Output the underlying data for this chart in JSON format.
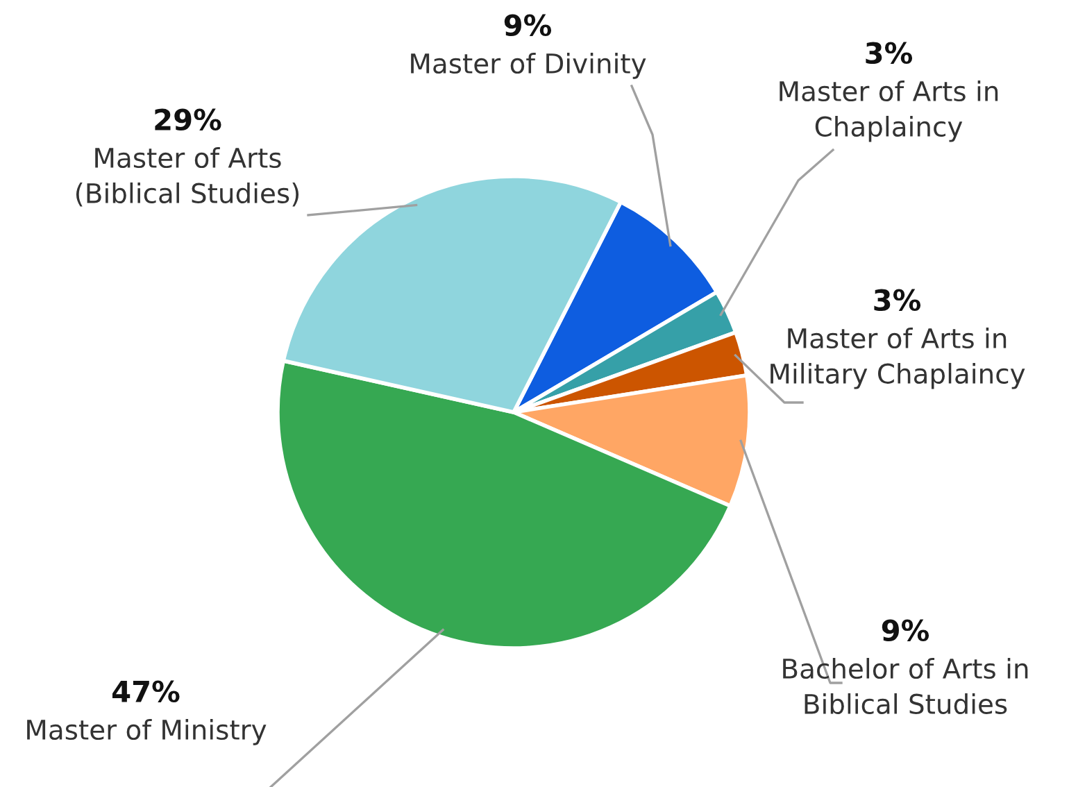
{
  "chart_data": {
    "type": "pie",
    "categories": [
      "Master of Divinity",
      "Master of Arts in\nChaplaincy",
      "Master of Arts in\nMilitary Chaplaincy",
      "Bachelor of Arts in\nBiblical Studies",
      "Master of Ministry",
      "Master of Arts\n(Biblical Studies)"
    ],
    "values": [
      9,
      3,
      3,
      9,
      47,
      29
    ],
    "value_labels": [
      "9%",
      "3%",
      "3%",
      "9%",
      "47%",
      "29%"
    ],
    "colors": [
      "#0e5de0",
      "#36a0a8",
      "#cc5500",
      "#ffa664",
      "#36a852",
      "#8fd5dd"
    ]
  }
}
